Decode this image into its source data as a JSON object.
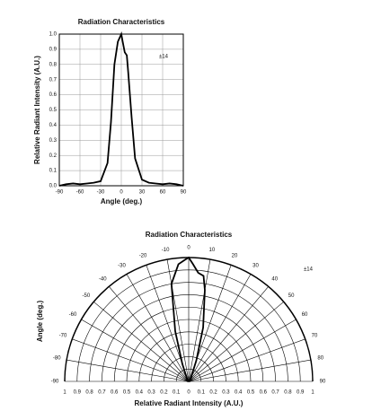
{
  "chart_data": [
    {
      "type": "line",
      "title": "Radiation Characteristics",
      "x_label": "Angle (deg.)",
      "y_label": "Relative Radiant Intensity (A.U.)",
      "annotation": "±14",
      "x": [
        -90,
        -80,
        -70,
        -60,
        -50,
        -40,
        -30,
        -20,
        -15,
        -10,
        -5,
        -2,
        0,
        2,
        5,
        8,
        10,
        15,
        20,
        30,
        40,
        50,
        60,
        70,
        80,
        90
      ],
      "values": [
        0.0,
        0.01,
        0.015,
        0.01,
        0.015,
        0.02,
        0.03,
        0.15,
        0.42,
        0.8,
        0.95,
        0.98,
        1.0,
        0.95,
        0.88,
        0.86,
        0.75,
        0.45,
        0.18,
        0.04,
        0.02,
        0.015,
        0.01,
        0.015,
        0.01,
        0.0
      ],
      "color": "#000000",
      "xlim": [
        -90,
        90
      ],
      "xticks": [
        -90,
        -60,
        -30,
        0,
        30,
        60,
        90
      ],
      "ylim": [
        0,
        1
      ],
      "yticks": [
        {
          "value": 0,
          "label": "0.0"
        },
        0.1,
        0.2,
        0.3,
        0.4,
        0.5,
        0.6,
        0.7,
        0.8,
        0.9,
        {
          "value": 1,
          "label": "1.0"
        }
      ],
      "grid": true
    },
    {
      "type": "polar",
      "title": "Radiation Characteristics",
      "x_label": "Relative Radiant Intensity (A.U.)",
      "y_label": "Angle (deg.)",
      "annotation": "±14",
      "x": [
        -90,
        -80,
        -70,
        -60,
        -50,
        -40,
        -30,
        -20,
        -15,
        -10,
        -5,
        -2,
        0,
        2,
        5,
        8,
        10,
        15,
        20,
        30,
        40,
        50,
        60,
        70,
        80,
        90
      ],
      "values": [
        0.0,
        0.01,
        0.015,
        0.01,
        0.015,
        0.02,
        0.03,
        0.15,
        0.42,
        0.8,
        0.95,
        0.98,
        1.0,
        0.95,
        0.88,
        0.86,
        0.75,
        0.45,
        0.18,
        0.04,
        0.02,
        0.015,
        0.01,
        0.015,
        0.01,
        0.0
      ],
      "color": "#000000",
      "xlim": [
        -90,
        90
      ],
      "xticks": [
        -90,
        -80,
        -70,
        -60,
        -50,
        -40,
        -30,
        -20,
        -10,
        0,
        10,
        20,
        30,
        40,
        50,
        60,
        70,
        80,
        90
      ],
      "rlim": [
        0,
        1
      ],
      "rticks": [
        0,
        0.1,
        0.2,
        0.3,
        0.4,
        0.5,
        0.6,
        0.7,
        0.8,
        0.9,
        1
      ],
      "grid": true
    }
  ]
}
